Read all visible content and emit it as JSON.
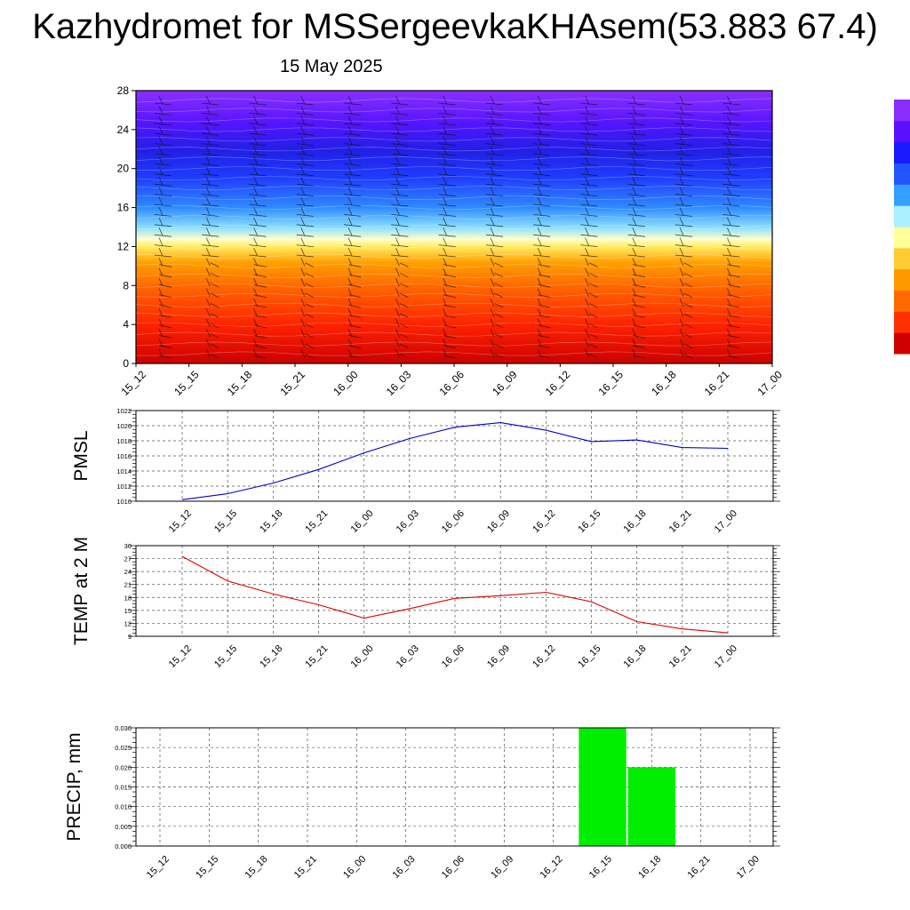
{
  "title": "Kazhydromet for MSSergeevkaKHAsem(53.883 67.4)",
  "date": "15 May 2025",
  "time_labels": [
    "15_12",
    "15_15",
    "15_18",
    "15_21",
    "16_00",
    "16_03",
    "16_06",
    "16_09",
    "16_12",
    "16_15",
    "16_18",
    "16_21",
    "17_00"
  ],
  "colors": {
    "pmsl_line": "#0000cc",
    "temp_line": "#dd0000",
    "precip_bar": "#00ee00",
    "grid": "#555555",
    "colorbar": [
      "#d00000",
      "#ff3000",
      "#ff6a00",
      "#ff9900",
      "#ffcc33",
      "#ffff99",
      "#aaf0ff",
      "#33a0ff",
      "#2255ff",
      "#1a1aff",
      "#5a10ff",
      "#8a2cff"
    ]
  },
  "chart_data": [
    {
      "type": "heatmap",
      "ylim": [
        0,
        28
      ],
      "yticks": [
        0,
        4,
        8,
        12,
        16,
        20,
        24,
        28
      ],
      "x": [
        "15_12",
        "15_15",
        "15_18",
        "15_21",
        "16_00",
        "16_03",
        "16_06",
        "16_09",
        "16_12",
        "16_15",
        "16_18",
        "16_21",
        "17_00"
      ],
      "legend": "colorbar right",
      "grid": false
    },
    {
      "type": "line",
      "ylabel": "PMSL",
      "x": [
        "15_12",
        "15_15",
        "15_18",
        "15_21",
        "16_00",
        "16_03",
        "16_06",
        "16_09",
        "16_12",
        "16_15",
        "16_18",
        "16_21",
        "17_00"
      ],
      "values": [
        1010.2,
        1011.0,
        1012.4,
        1014.2,
        1016.4,
        1018.3,
        1019.8,
        1020.4,
        1019.4,
        1017.9,
        1018.1,
        1017.1,
        1017.0
      ],
      "ylim": [
        1010,
        1022
      ],
      "yticks": [
        1010,
        1012,
        1014,
        1016,
        1018,
        1020,
        1022
      ],
      "grid": true
    },
    {
      "type": "line",
      "ylabel": "TEMP at 2 M",
      "x": [
        "15_12",
        "15_15",
        "15_18",
        "15_21",
        "16_00",
        "16_03",
        "16_06",
        "16_09",
        "16_12",
        "16_15",
        "16_18",
        "16_21",
        "17_00"
      ],
      "values": [
        27.5,
        21.8,
        18.8,
        16.3,
        13.2,
        15.4,
        17.8,
        18.4,
        19.2,
        17.0,
        12.4,
        10.7,
        9.8
      ],
      "ylim": [
        9,
        30
      ],
      "yticks": [
        9,
        12,
        15,
        18,
        21,
        24,
        27,
        30
      ],
      "grid": true
    },
    {
      "type": "bar",
      "ylabel": "PRECIP, mm",
      "x": [
        "15_12",
        "15_15",
        "15_18",
        "15_21",
        "16_00",
        "16_03",
        "16_06",
        "16_09",
        "16_12",
        "16_15",
        "16_18",
        "16_21",
        "17_00"
      ],
      "values": [
        0,
        0,
        0,
        0,
        0,
        0,
        0,
        0,
        0,
        0.03,
        0.02,
        0,
        0
      ],
      "ylim": [
        0,
        0.03
      ],
      "yticks": [
        "0.000",
        "0.005",
        "0.010",
        "0.015",
        "0.020",
        "0.025",
        "0.030"
      ],
      "grid": true
    }
  ]
}
